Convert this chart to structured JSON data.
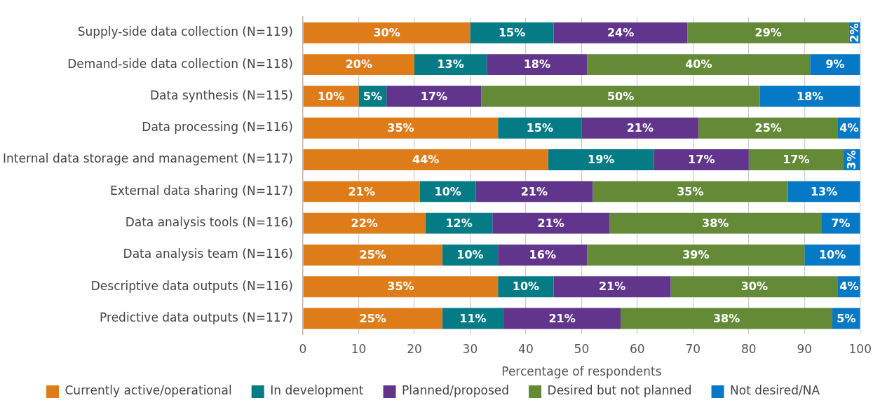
{
  "chart_data": {
    "type": "bar",
    "orientation": "horizontal",
    "stacked": true,
    "categories": [
      "Supply-side data collection (N=119)",
      "Demand-side data collection (N=118)",
      "Data synthesis (N=115)",
      "Data processing (N=116)",
      "Internal data storage and management (N=117)",
      "External data sharing (N=117)",
      "Data analysis tools (N=116)",
      "Data analysis team (N=116)",
      "Descriptive data outputs (N=116)",
      "Predictive data outputs (N=117)"
    ],
    "series": [
      {
        "name": "Currently active/operational",
        "color": "#df7c1a",
        "values": [
          30,
          20,
          10,
          35,
          44,
          21,
          22,
          25,
          35,
          25
        ],
        "value_labels": [
          "30%",
          "20%",
          "10%",
          "35%",
          "44%",
          "21%",
          "22%",
          "25%",
          "35%",
          "25%"
        ]
      },
      {
        "name": "In development",
        "color": "#047b85",
        "values": [
          15,
          13,
          5,
          15,
          19,
          10,
          12,
          10,
          10,
          11
        ],
        "value_labels": [
          "15%",
          "13%",
          "5%",
          "15%",
          "19%",
          "10%",
          "12%",
          "10%",
          "10%",
          "11%"
        ]
      },
      {
        "name": "Planned/proposed",
        "color": "#61358b",
        "values": [
          24,
          18,
          17,
          21,
          17,
          21,
          21,
          16,
          21,
          21
        ],
        "value_labels": [
          "24%",
          "18%",
          "17%",
          "21%",
          "17%",
          "21%",
          "21%",
          "16%",
          "21%",
          "21%"
        ]
      },
      {
        "name": "Desired but not planned",
        "color": "#648a38",
        "values": [
          29,
          40,
          50,
          25,
          17,
          35,
          38,
          39,
          30,
          38
        ],
        "value_labels": [
          "29%",
          "40%",
          "50%",
          "25%",
          "17%",
          "35%",
          "38%",
          "39%",
          "30%",
          "38%"
        ]
      },
      {
        "name": "Not desired/NA",
        "color": "#0679c6",
        "values": [
          2,
          9,
          18,
          4,
          3,
          13,
          7,
          10,
          4,
          5
        ],
        "value_labels": [
          "2%",
          "9%",
          "18%",
          "4%",
          "3%",
          "13%",
          "7%",
          "10%",
          "4%",
          "5%"
        ]
      }
    ],
    "xlim": [
      0,
      100
    ],
    "xticks": [
      0,
      10,
      20,
      30,
      40,
      50,
      60,
      70,
      80,
      90,
      100
    ],
    "xlabel": "Percentage of respondents",
    "grid": "x",
    "legend": "bottom"
  }
}
